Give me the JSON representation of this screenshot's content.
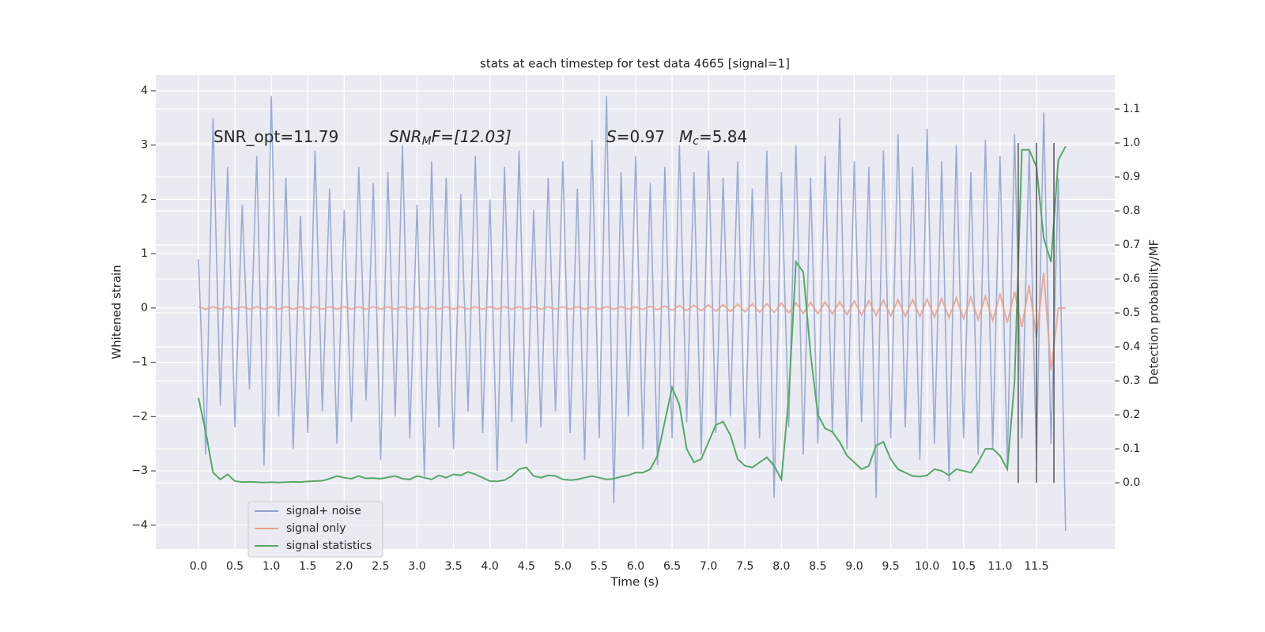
{
  "chart_data": {
    "type": "line",
    "title": "stats at each timestep for test data 4665 [signal=1]",
    "xlabel": "Time (s)",
    "ylabel": "Whitened strain",
    "y2label": "Detection probability/MF",
    "annotations": [
      {
        "parts": [
          "SNR_opt=11.79"
        ]
      },
      {
        "parts": [
          "SNR",
          "M",
          "F=[12.03]"
        ]
      },
      {
        "parts": [
          "S",
          "=0.97"
        ]
      },
      {
        "parts": [
          "M",
          "c",
          "=5.84"
        ]
      }
    ],
    "x": [
      0.0,
      0.1,
      0.2,
      0.3,
      0.4,
      0.5,
      0.6,
      0.7,
      0.8,
      0.9,
      1.0,
      1.1,
      1.2,
      1.3,
      1.4,
      1.5,
      1.6,
      1.7,
      1.8,
      1.9,
      2.0,
      2.1,
      2.2,
      2.3,
      2.4,
      2.5,
      2.6,
      2.7,
      2.8,
      2.9,
      3.0,
      3.1,
      3.2,
      3.3,
      3.4,
      3.5,
      3.6,
      3.7,
      3.8,
      3.9,
      4.0,
      4.1,
      4.2,
      4.3,
      4.4,
      4.5,
      4.6,
      4.7,
      4.8,
      4.9,
      5.0,
      5.1,
      5.2,
      5.3,
      5.4,
      5.5,
      5.6,
      5.7,
      5.8,
      5.9,
      6.0,
      6.1,
      6.2,
      6.3,
      6.4,
      6.5,
      6.6,
      6.7,
      6.8,
      6.9,
      7.0,
      7.1,
      7.2,
      7.3,
      7.4,
      7.5,
      7.6,
      7.7,
      7.8,
      7.9,
      8.0,
      8.1,
      8.2,
      8.3,
      8.4,
      8.5,
      8.6,
      8.7,
      8.8,
      8.9,
      9.0,
      9.1,
      9.2,
      9.3,
      9.4,
      9.5,
      9.6,
      9.7,
      9.8,
      9.9,
      10.0,
      10.1,
      10.2,
      10.3,
      10.4,
      10.5,
      10.6,
      10.7,
      10.8,
      10.9,
      11.0,
      11.1,
      11.2,
      11.3,
      11.4,
      11.5,
      11.6,
      11.7,
      11.8,
      11.9
    ],
    "series": [
      {
        "name": "signal+ noise",
        "color": "#8da0cb",
        "axis": "y",
        "values": [
          0.9,
          -2.7,
          3.5,
          -1.8,
          2.6,
          -2.2,
          1.9,
          -1.5,
          2.8,
          -2.9,
          3.9,
          -2.0,
          2.4,
          -2.6,
          1.7,
          -2.3,
          2.9,
          -1.9,
          2.2,
          -2.5,
          1.8,
          -2.1,
          2.6,
          -1.7,
          2.3,
          -2.8,
          2.5,
          -2.0,
          3.0,
          -2.4,
          1.9,
          -3.1,
          2.7,
          -2.2,
          2.4,
          -2.6,
          2.1,
          -1.9,
          2.8,
          -2.3,
          2.0,
          -3.0,
          2.6,
          -2.1,
          2.9,
          -2.5,
          1.8,
          -2.2,
          2.4,
          -1.9,
          2.7,
          -2.3,
          2.2,
          -2.8,
          3.1,
          -2.4,
          3.9,
          -3.6,
          2.5,
          -2.0,
          2.8,
          -2.6,
          2.3,
          -2.9,
          2.6,
          -2.4,
          3.0,
          -2.1,
          2.5,
          -2.7,
          2.9,
          -2.3,
          2.4,
          -2.0,
          2.7,
          -2.6,
          2.2,
          -2.4,
          2.9,
          -3.5,
          2.5,
          -2.2,
          3.0,
          -2.7,
          2.4,
          -2.5,
          2.8,
          -2.3,
          3.5,
          -2.6,
          2.7,
          -2.1,
          2.6,
          -3.5,
          2.9,
          -2.4,
          3.2,
          -2.2,
          2.6,
          -2.8,
          3.3,
          -2.5,
          2.7,
          -3.2,
          3.0,
          -2.4,
          2.5,
          -2.7,
          3.1,
          -2.6,
          2.8,
          -2.9,
          3.2,
          -2.4,
          2.9,
          -2.8,
          3.6,
          -2.5,
          2.4,
          -4.1
        ]
      },
      {
        "name": "signal only",
        "color": "#e8a08a",
        "axis": "y",
        "values": [
          0.02,
          -0.02,
          0.02,
          -0.02,
          0.02,
          -0.02,
          0.02,
          -0.02,
          0.02,
          -0.02,
          0.02,
          -0.02,
          0.02,
          -0.02,
          0.02,
          -0.02,
          0.02,
          -0.02,
          0.02,
          -0.02,
          0.02,
          -0.02,
          0.02,
          -0.02,
          0.02,
          -0.02,
          0.02,
          -0.02,
          0.02,
          -0.02,
          0.02,
          -0.02,
          0.02,
          -0.02,
          0.02,
          -0.02,
          0.02,
          -0.02,
          0.02,
          -0.02,
          0.02,
          -0.02,
          0.02,
          -0.02,
          0.02,
          -0.02,
          0.02,
          -0.02,
          0.02,
          -0.02,
          0.02,
          -0.02,
          0.02,
          -0.02,
          0.02,
          -0.02,
          0.02,
          -0.02,
          0.02,
          -0.02,
          0.02,
          -0.025,
          0.03,
          -0.03,
          0.035,
          -0.04,
          0.04,
          -0.045,
          0.05,
          -0.05,
          0.055,
          -0.06,
          0.06,
          -0.065,
          0.07,
          -0.07,
          0.075,
          -0.08,
          0.08,
          -0.085,
          0.09,
          -0.09,
          0.095,
          -0.1,
          0.1,
          -0.105,
          0.11,
          -0.11,
          0.115,
          -0.12,
          0.125,
          -0.13,
          0.13,
          -0.135,
          0.14,
          -0.145,
          0.15,
          -0.15,
          0.155,
          -0.16,
          0.165,
          -0.17,
          0.175,
          -0.18,
          0.19,
          -0.195,
          0.2,
          -0.21,
          0.22,
          -0.23,
          0.25,
          -0.27,
          0.3,
          -0.35,
          0.42,
          -0.55,
          0.65,
          -1.15,
          0.0,
          0.0
        ]
      },
      {
        "name": "signal statistics",
        "color": "#55a868",
        "axis": "y2",
        "values": [
          0.25,
          0.15,
          0.03,
          0.01,
          0.025,
          0.005,
          0.002,
          0.003,
          0.002,
          0.001,
          0.002,
          0.001,
          0.002,
          0.003,
          0.002,
          0.004,
          0.005,
          0.006,
          0.012,
          0.02,
          0.015,
          0.012,
          0.02,
          0.013,
          0.014,
          0.012,
          0.016,
          0.02,
          0.012,
          0.01,
          0.02,
          0.015,
          0.01,
          0.022,
          0.015,
          0.025,
          0.022,
          0.032,
          0.025,
          0.015,
          0.005,
          0.004,
          0.008,
          0.02,
          0.04,
          0.045,
          0.02,
          0.015,
          0.022,
          0.02,
          0.01,
          0.008,
          0.01,
          0.015,
          0.02,
          0.015,
          0.01,
          0.012,
          0.018,
          0.022,
          0.03,
          0.03,
          0.04,
          0.08,
          0.18,
          0.28,
          0.23,
          0.1,
          0.06,
          0.07,
          0.12,
          0.17,
          0.18,
          0.14,
          0.07,
          0.05,
          0.045,
          0.06,
          0.075,
          0.05,
          0.01,
          0.25,
          0.65,
          0.62,
          0.38,
          0.2,
          0.16,
          0.15,
          0.12,
          0.08,
          0.06,
          0.04,
          0.05,
          0.11,
          0.12,
          0.07,
          0.04,
          0.03,
          0.02,
          0.018,
          0.022,
          0.04,
          0.035,
          0.022,
          0.04,
          0.035,
          0.03,
          0.06,
          0.1,
          0.1,
          0.08,
          0.04,
          0.3,
          0.98,
          0.98,
          0.93,
          0.72,
          0.65,
          0.95,
          0.99
        ]
      }
    ],
    "vlines": {
      "x": [
        11.25,
        11.5,
        11.74
      ],
      "y2": [
        0,
        1
      ],
      "color": "#555555"
    },
    "xlim": [
      -0.586,
      12.575
    ],
    "ylim": [
      -4.44,
      4.29
    ],
    "y2lim": [
      -0.195,
      1.2
    ],
    "xticks": [
      {
        "value": 0,
        "label": "0.0"
      },
      0.5,
      {
        "value": 1,
        "label": "1.0"
      },
      1.5,
      {
        "value": 2,
        "label": "2.0"
      },
      2.5,
      {
        "value": 3,
        "label": "3.0"
      },
      3.5,
      {
        "value": 4,
        "label": "4.0"
      },
      4.5,
      {
        "value": 5,
        "label": "5.0"
      },
      5.5,
      {
        "value": 6,
        "label": "6.0"
      },
      6.5,
      {
        "value": 7,
        "label": "7.0"
      },
      7.5,
      {
        "value": 8,
        "label": "8.0"
      },
      8.5,
      {
        "value": 9,
        "label": "9.0"
      },
      9.5,
      {
        "value": 10,
        "label": "10.0"
      },
      10.5,
      {
        "value": 11,
        "label": "11.0"
      },
      11.5
    ],
    "yticks": [
      {
        "value": -4,
        "label": "−4"
      },
      {
        "value": -3,
        "label": "−3"
      },
      {
        "value": -2,
        "label": "−2"
      },
      {
        "value": -1,
        "label": "−1"
      },
      0,
      1,
      2,
      3,
      4
    ],
    "y2ticks": [
      {
        "value": 0,
        "label": "0.0"
      },
      0.1,
      0.2,
      0.3,
      0.4,
      0.5,
      0.6,
      0.7,
      0.8,
      0.9,
      {
        "value": 1,
        "label": "1.0"
      },
      1.1
    ],
    "grid": true,
    "legend": "lower left"
  }
}
